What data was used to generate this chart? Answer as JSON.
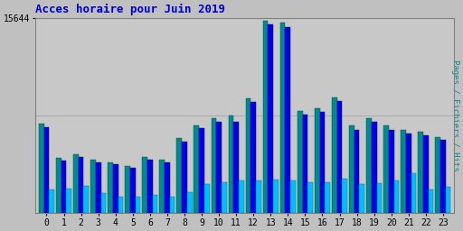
{
  "title": "Acces horaire pour Juin 2019",
  "ylabel": "Pages / Fichiers / Hits",
  "xlabel_ticks": [
    0,
    1,
    2,
    3,
    4,
    5,
    6,
    7,
    8,
    9,
    10,
    11,
    12,
    13,
    14,
    15,
    16,
    17,
    18,
    19,
    20,
    21,
    22,
    23
  ],
  "ymax": 15644,
  "ytick_label": "15644",
  "colors": {
    "green": "#008B8B",
    "blue": "#0000EE",
    "cyan": "#00BFFF"
  },
  "pages": [
    7200,
    4400,
    4700,
    4300,
    4100,
    3800,
    4500,
    4300,
    6000,
    7000,
    7600,
    7800,
    9200,
    15400,
    15300,
    8200,
    8400,
    9300,
    7000,
    7600,
    7000,
    6700,
    6500,
    6100
  ],
  "fichiers": [
    6900,
    4200,
    4500,
    4100,
    3900,
    3600,
    4300,
    4100,
    5700,
    6800,
    7300,
    7300,
    8900,
    15100,
    14900,
    7900,
    8100,
    9000,
    6700,
    7300,
    6700,
    6400,
    6200,
    5900
  ],
  "hits": [
    1900,
    2000,
    2200,
    1600,
    1300,
    1300,
    1500,
    1300,
    1700,
    2300,
    2500,
    2600,
    2600,
    2700,
    2600,
    2500,
    2500,
    2800,
    2300,
    2400,
    2600,
    3200,
    1900,
    2100
  ],
  "bg_color": "#C0C0C0",
  "plot_bg": "#C8C8C8",
  "title_color": "#0000CC",
  "ylabel_color": "#008B8B",
  "grid_color": "#AAAAAA",
  "border_color": "#808080",
  "title_fontsize": 9,
  "tick_fontsize": 7,
  "ylabel_fontsize": 6.5
}
